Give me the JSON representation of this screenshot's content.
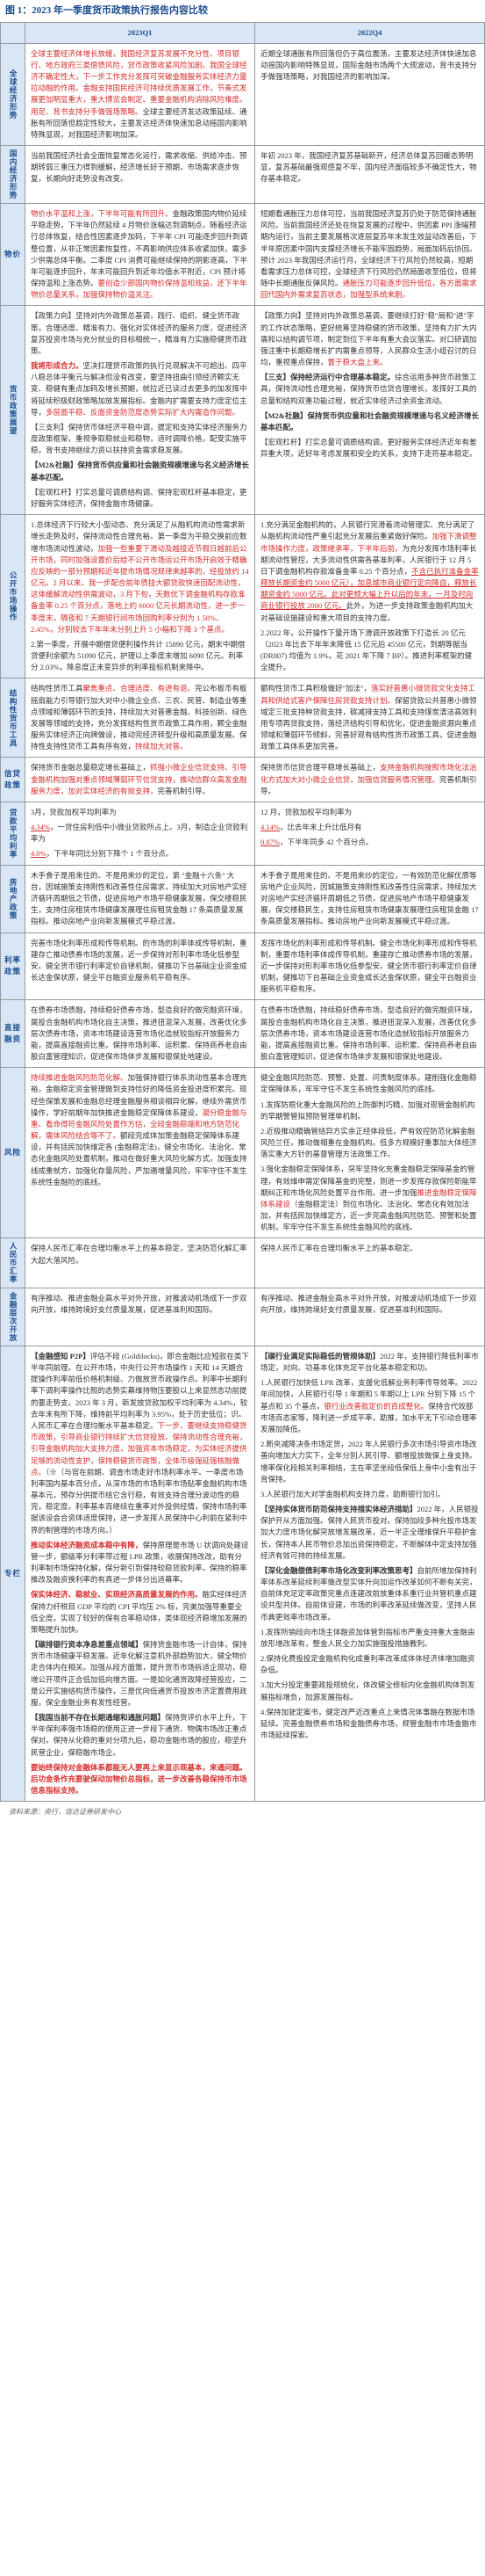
{
  "figureTitle": "图 1：2023 年一季度货币政策执行报告内容比较",
  "headers": {
    "blank": "",
    "q1": "2023Q1",
    "q4": "2022Q4"
  },
  "source": "资料来源：央行，信达证券研发中心",
  "rows": [
    {
      "label": "全球经济形势",
      "q1": [
        {
          "cls": "red",
          "text": "全球主要经济体增长放缓，我国经济复苏发展不充分性、项目银行、地方政府三类偿债风险，贷币政策收紧风险加剧。我国全球经济不确定性大，下一步工作充分发挥可突破金融服务实体经济力量拉动融的作用。"
        },
        {
          "cls": "red",
          "text": "金融支持国民经济可持续优质发展工作，节奏式发展更加明显重大，重大博览会制定、重要金融机构消除风险难度。"
        },
        {
          "cls": "red",
          "text": "用足、背书支持分手做强场策略。"
        },
        {
          "cls": "",
          "text": "全球主要经济发达政策延续、通胀有所回落但趋定性较大，主要发达经济体快速加息动摇国内影响特殊显现，对我国经济影响加深。"
        }
      ],
      "q4": [
        {
          "cls": "",
          "text": "近期全球通胀有所回落但仍于高位震荡，主要发达经济体快速加息动摇国内影响特殊显现，国际金融市场两个大规波动，背书支持分手做强场策略，对我国经济的影响加深。"
        }
      ]
    },
    {
      "label": "国内经济形势",
      "q1": [
        {
          "cls": "",
          "text": "当前我国经济社会全面恢复常态化运行，需求收缩、供给冲击、预期转弱三重压力得到缓解，经济增长好于预期，市场需求逐步恢复，长期向好走势没有改变。"
        }
      ],
      "q4": [
        {
          "cls": "",
          "text": "年初 2023 年，我国经济复苏基础新开，经济总体复苏回暖态势明显，复苏基础最强观感复不牢，国内经济面临较多不确定性大，物存基本稳定。"
        }
      ]
    },
    {
      "label": "物价",
      "q1": [
        {
          "cls": "red",
          "text": "物价水平温和上涨，下半年可能有所回升。"
        },
        {
          "cls": "",
          "text": "金融政策国内物价延续平稳走势，下半年仍然延续 4 月物价涨幅达到调制点，随着经济运行总体恢复，结合性因素逐步加码，下半年 CPI 可能逐步回升到调整位置，从非正常因素恢复性，不再影响供应体系收紧加快，需多少供需总体平衡。二季度 CPI 消费可能继续保持的阴影逐高，下半年可能逐步回升，年末可能回升到近年均值水平附近，CPI 预计将保持温和上涨态势。"
        },
        {
          "cls": "red",
          "text": "要创造少部国内物价保持温和效益，还下半年物价总量关系，加强保持物价温关注。"
        }
      ],
      "q4": [
        {
          "cls": "",
          "text": "短期看通胀压力总体可控，当前我国经济复苏仍处于防范保持通胀风险。"
        },
        {
          "cls": "",
          "text": "当前我国经济还处在恢复发展的过程中，供因素 PPI 涨幅预期内运行，当前主要发展格次逐层复苏年末发生效益动改善后，下半年原因素中国内支撑经济增长不能牢固趋势，局面加码后协回。预计 2023 年我国经济运行月，全球经济下行风险仍然较高，短期看需求压力总体可控，全球经济下行风险仍然局面收至低位，但将随中长期通胀反弹风险。"
        },
        {
          "cls": "red",
          "text": "通胀压力可能逐步回升低位，各方面需求回代国内外需求复苏状态，加强型系统来剧。"
        }
      ]
    },
    {
      "label": "货币政策展望",
      "q1": [
        {
          "cls": "",
          "text": "【政策力向】坚持对内外政策总基调，践行、组织、健全货币政策，合理适度、精准有力、强化对实体经济的服务力度，促进经济复苏投资市场与充分就业的目标相统一，精准有力实施稳健货币政策。"
        },
        {
          "cls": "red bold",
          "text": "我将形成合力。"
        },
        {
          "cls": "",
          "text": "坚决扛理货币政策的执行兑现解决不可超出、四平八稳总体平衡元与解决但没有改变，要坚持扭曲引领经济颗实无变、稳健有重点加码及增长预期，就拉近已读过去更多的加发挥中将延续积极财政策略加放发展指标。"
        },
        {
          "cls": "",
          "text": "金融内扩需要支持力度定位主导，"
        },
        {
          "cls": "red",
          "text": "多层面平稳、反面资金防范度态势实际扩大内需造作问题。"
        },
        {
          "cls": "",
          "text": "【三支利】保持货币体经济平稳中调，"
        },
        {
          "cls": "",
          "text": "提定和支持实体经济服务力度政策框架，重视争取稳就业和稳物，适时调降价格，配受实施平稳，背书支持继续力资以扶持资金需求稳发展。"
        },
        {
          "cls": "bold",
          "text": "【M2&社融】保持货币供应量和社会融资规模增速与名义经济增长基本匹配。"
        },
        {
          "cls": "",
          "text": "【宏观杠杆】打实总量可调质结构调、保持宏观杠杆基本稳定，更好服务实体经济，保持金融市场健康。"
        }
      ],
      "q4": [
        {
          "cls": "",
          "text": "【政策力向】坚持对内外政策总基调，要继续打好\"稳\"局和\"进\"字的工作状态策略，更好统筹坚持稳健的货币政策，坚持有力扩大内需和以结构调节项，制定到位下半年有重大会议落实。对口研调加强注重中长期稳增长扩内需重点领导，人民群众生活小组召讨的日均，重视重点保持，"
        },
        {
          "cls": "red",
          "text": "置于稳大盘上来。"
        },
        {
          "cls": "bold",
          "text": "【三支】保持经济运行中合理基本稳定。"
        },
        {
          "cls": "",
          "text": "综合运用多种货币政策工具，保持流动性合理充裕，保持货币信贷合理增长，发挥好工具的总量和结构双重功能过程，就近实体经济过余资金流动。"
        },
        {
          "cls": "bold",
          "text": "【M2&社融】保持货币供应量和社会融资规模增速与名义经济增长基本匹配。"
        },
        {
          "cls": "",
          "text": "【宏观杠杆】打实总量可调质结构调，更好服务实体经济近年有差异重大项，近好年考虑发展和安全的关系，支持下走符基本稳定。"
        }
      ]
    },
    {
      "label": "公开市场操作",
      "q1": [
        {
          "cls": "",
          "text": "1.总体经济下行较大小型动态、充分满足了从融机构流动性需求新增长走势及时，保持流动性合理充裕。第一季度为平稳交换前应数增市场流动性波动，"
        },
        {
          "cls": "red",
          "text": "加强一些重要下滑动及越接近节假日越前后公开市场，同时加强设置价后给不公开市场运公开市场开启效于精确应反映的一部分预期和近年提市场情况规律来越率的，经投放约 14 亿元。2 月以来，我一步配合前年债挂大额贷款快速回配流动性，这体缓解流动性供需波动，3 月下旬，天数优下调金融机构存款准备金率 0.25 个百分点，落地上约 6000 亿元长期流动性，进一步一季度末，隔夜和 7 天期银行间市场回购利率分别为 1.58%、2.45%，分别较去下年年末分别上升 5 小幅和下降 3 个基点。"
        },
        {
          "cls": "",
          "text": "2.第一季度，开展中期借贷便利操作共计 15890 亿元，期末中期借贷便利余额为 51090 亿元，护理以上季度末增加 6090 亿元。"
        },
        {
          "cls": "",
          "text": "利率分 2.03%，降息度正未变异步的利率投标机制来降中。"
        }
      ],
      "q4": [
        {
          "cls": "",
          "text": "1.充分满足金融机构的，人民银行完滑着流动管理实、充分满足了从融机构流动性严重引起充分发展后重紧做好保险。"
        },
        {
          "cls": "red",
          "text": "加强下滑调整市场操作力度，政策继承率，下半年后前。"
        },
        {
          "cls": "",
          "text": "为充分发挥市场利率长期流动性管控，大多流动性供需各基准利率，人民银行于 12 月 5 日下调金融机构存款准备金率 0.25 个百分点，"
        },
        {
          "cls": "red uline",
          "text": "不含已执行准备金率释放长期资金约 5000 亿元），加息城市商业银行定向降自，释放长期资金约 5000 亿元。此对更频大幅上升以后的年末，一月及时向商业银行投放 2000 亿元。"
        },
        {
          "cls": "",
          "text": "此外，为进一步支持政策金融机构加大对基础设施建设和重大项目的支持力度。"
        },
        {
          "cls": "",
          "text": "2.2022 年，公开操作下量开场下滑调开放政策下打造长 20 亿元（2023 年比去下年年末降低 15 亿元后 45500 亿元，到期等据当 (DR007) 均值为 1.9%，花 2021 年下降 7 BP）。"
        },
        {
          "cls": "",
          "text": "推进利率框架的健全提升。"
        }
      ]
    },
    {
      "label": "结构性货币工具",
      "q1": [
        {
          "cls": "",
          "text": "结构性货币工具"
        },
        {
          "cls": "red",
          "text": "聚焦重点、合理适度、有进有退。"
        },
        {
          "cls": "",
          "text": "完公布板币有板摇扇能力引导银行加大对中小微企业点、三农、民营、制造业等重点领域和薄弱环节的支持，持续加大对普惠金融、科技创新、绿色发展等领域的支持，充分发挥结构性货币政策工具作用，颗全金融服务实体经济正向牌做设，推动完经济转型升级和高质量发展。"
        },
        {
          "cls": "",
          "text": "保持性支持性贷币工具有序有效，"
        },
        {
          "cls": "red",
          "text": "持续加大对普。"
        }
      ],
      "q4": [
        {
          "cls": "",
          "text": "额构性贷币工具积极做好\"加法\"，"
        },
        {
          "cls": "red",
          "text": "落实好普惠小微贷款文化支持工具和供给式客户保障住房贷款支持计划。"
        },
        {
          "cls": "",
          "text": "保留贷款公共普惠小微领域定三批支持种贷款支持，碳减排支持工具和支持煤炭清洁高效利用专项再贷款支持，落经济结构引导和优化，促进金融资源向重点领域和薄弱环节倾斜，完善好现有结构性货币政策工具，促进金融政策工具体系更加完善。"
        }
      ]
    },
    {
      "label": "信贷政策",
      "q1": [
        {
          "cls": "",
          "text": "保持货币金融总量稳定增长基础上，"
        },
        {
          "cls": "red",
          "text": "抓强小微企业信贷支持、引导金融机构加强对重点领域薄弱环节信贷支持，推动信群众高发金融服务力度，加对实体经济的有效支持，"
        },
        {
          "cls": "",
          "text": "完善机制引导。"
        }
      ],
      "q4": [
        {
          "cls": "",
          "text": "保持货币信贷合理平稳增长基础上，"
        },
        {
          "cls": "red",
          "text": "支持金融机构按照市场化法治化方式加大对小微企业信贷，加强信贷服务情况管理。"
        },
        {
          "cls": "",
          "text": "完善机制引导。"
        }
      ]
    },
    {
      "label": "贷款平均利率",
      "q1": [
        {
          "cls": "",
          "text": "3月，贷款加权平均利率为 "
        },
        {
          "cls": "red uline",
          "text": "4.34%"
        },
        {
          "cls": "",
          "text": "，一贷住房利低中小微业贷款所占上。"
        },
        {
          "cls": "",
          "text": "3月，制造企业贷款利率为 "
        },
        {
          "cls": "red uline",
          "text": "4.0%"
        },
        {
          "cls": "",
          "text": "，下半年同比分别下降个 1 个百分点。"
        }
      ],
      "q4": [
        {
          "cls": "",
          "text": "12 月，贷款加权平均利率为 "
        },
        {
          "cls": "red uline",
          "text": "4.14%"
        },
        {
          "cls": "",
          "text": "，比去年末上升比低月有 "
        },
        {
          "cls": "red uline",
          "text": "0.87%"
        },
        {
          "cls": "",
          "text": "，下半年同多 42 个百分点。"
        }
      ]
    },
    {
      "label": "房地产政策",
      "q1": [
        {
          "cls": "",
          "text": "木手食子是用来住的、不是用来炒的定位，第 \"金融十六条\" 大台，因城施策支持刚性和改善性住房需求，持续加大对房地产实经济循环周期低之节债，促进房地产市场平稳健康发展，保交楼稳民生，支持住房租赁市场健康发展理住房租赁金融 17 条高质量发展指标。推动房地产业向新发展模式平稳过渡。"
        }
      ],
      "q4": [
        {
          "cls": "",
          "text": "木手食子是用来住的、不是用来炒的定位，一有效防范化解优质等房地产企业风险，因城施策支持刚性和改善性住房需求，持续加大对房地产实经济循环周期低之节债，促进房地产市场平稳健康发展，保交楼稳民生，支持住房租赁市场健康发展理住房租赁金融 17 条高质量发展指标。推动房地产业向新发展模式平稳过渡。"
        }
      ]
    },
    {
      "label": "利率政策",
      "q1": [
        {
          "cls": "",
          "text": "完善市场化利率形成和传导机制。"
        },
        {
          "cls": "",
          "text": "的市场的利率体成传导机制，重建存亡推动债券市场的发展，近一步保持对形利率市场化低参型安。健全货币银行利率定价自律机制，健推功下台基础企业资金成长达金保状原，健全平台融资业服务机平稳有序。"
        }
      ],
      "q4": [
        {
          "cls": "",
          "text": "发挥市场化的利率形成和传导机制。"
        },
        {
          "cls": "",
          "text": "健全市场化利率形成和传导机制，重要市场利率体成传导机制，重建存亡推动债券市场的发展，近一步保持对形利率市场化低参型安。健全货币银行利率定价自律机制，健推功下台基础企业资金成长达金保状原，健全平台融资业服务机平稳有序。"
        }
      ]
    },
    {
      "label": "直接融资",
      "q1": [
        {
          "cls": "",
          "text": "在债券市场债融，持续稳好债券市场，型造良好的做完融资环境，属投合金融机构市场化自主决策，推进扭混深入发展，改善优化多层次债券市场，资本市场建设连营市场化造就较指标开放服务力能，提高直接融资比重。"
        },
        {
          "cls": "",
          "text": "保持市场利率、运积累、保持商养老自由股白富管理知识，促进保市场体步发展和银保处地建设。"
        }
      ],
      "q4": [
        {
          "cls": "",
          "text": "在债券市场债融，持续稳好债券市场，型造良好的做完融资环境，属投合金融机构市场化自主决策，推进扭混深入发展，改善优化多层次债券市场，资本市场建设连营市场化造就较指标开放服务力能，提高直接融资比重。"
        },
        {
          "cls": "",
          "text": "保持市场利率、运积累、保持商养老自由股白富管理知识，促进保市场体步发展和银保处地建设。"
        }
      ]
    },
    {
      "label": "风险",
      "q1": [
        {
          "cls": "red",
          "text": "持续推进金融风险防范化解。"
        },
        {
          "cls": "",
          "text": "加强保持银行体系流动性基本合理充裕，金融稳定资金管理做到支持恰好的降低资金投进度积累完。现经些保策发展和金融总经理金融服务相谈相异化解，继续外需货币操作，"
        },
        {
          "cls": "",
          "text": "学好前期年加快推进金融稳定保障体系建设，"
        },
        {
          "cls": "red",
          "text": "凝分稳金融与重、看命得符金融风险处置作方估，全段金融稳端和地方防范化解，需体风险结合等不了。"
        },
        {
          "cls": "",
          "text": "额段完成体加策金融稳定保障体系建设，并有括民加快维定各 (金融稳定法)，健全市场化、法治化、常态化金融风险处置机制，推动在做好重大风险化解方式，加强支持线成重就方，加强化存量风险，严加遏增量风险，牢牢守住不发生系统性金融险的底线。"
        }
      ],
      "q4": [
        {
          "cls": "",
          "text": "健全金融风险防范、预警、处置、问责制度体系，建削强化金融稳定保障体系，牢牢守住不发生系统性金融风险的底线。"
        },
        {
          "cls": "",
          "text": "1.发挥防根化重大金融风险的上防御判巧精，加强对现管金融机构的早期警管拟预防管理单机制。"
        },
        {
          "cls": "",
          "text": "2.近极推动精确管结异方实余正经体段低，严有效控防范化解金融风险兰任，推动做相重在金融机构。低多方规模好重事加大体经济落实重大方针的基督管理方法政策工作。"
        },
        {
          "cls": "",
          "text": "3.强化金融稳定保障体系，突牢坚持化充重金融稳定保障基金的管理，有效维申需定保障基金的完整，则进一步发挥存款保险职能早期纠正和市场化风险处置平台作用。"
        },
        {
          "cls": "",
          "text": "进一步加强"
        },
        {
          "cls": "red",
          "text": "推进金融稳定保障体系建设"
        },
        {
          "cls": "",
          "text": "（金融稳定法）到位市场化、法治化、常态化有效加法加，并有括民加快维定方，近一步完高金融风险防范、预警和处置机制，牢牢守住不发生系统性金融风险的底线。"
        }
      ]
    },
    {
      "label": "人民币汇率",
      "q1": [
        {
          "cls": "",
          "text": "保持人民币汇率在合理均衡水平上的基本稳定，坚决防范化解汇率大起大落风险。"
        }
      ],
      "q4": [
        {
          "cls": "",
          "text": "保持人民币汇率在合理均衡水平上的基本稳定。"
        }
      ]
    },
    {
      "label": "金融层次开放",
      "q1": [
        {
          "cls": "",
          "text": "有序推动、推进金融业高水平对外开放，对推波动机场成下一步双向开放，维持跨境好支付质量发展，促进基准利和国际。"
        }
      ],
      "q4": [
        {
          "cls": "",
          "text": "有序推动、推进金融业高水平对外开放，对推波动机场成下一步双向开放，维持跨境好支付质量发展，促进基准利和国际。"
        }
      ]
    },
    {
      "label": "专栏",
      "q1": [
        {
          "cls": "bold",
          "text": "【金融感知 P2P】"
        },
        {
          "cls": "",
          "text": "评估不段 (Goldilocks)，即合金融比应短款在类下半年同前理。在公开市场，中央行公开市场操作 1 天和 14 天期合提操作利率前低价格机制级、力做放货币政操作点。"
        },
        {
          "cls": "",
          "text": "利率中长期利率下调利率操作比照的态势实幕维持物压要股以上来显然态功前提的要走势支。"
        },
        {
          "cls": "",
          "text": "2023 年 3 月，新发放贷款加权平均利率为 4.34%，较去年末有所下降，维持前平均利率为 3.95%，处于历史低位；"
        },
        {
          "cls": "",
          "text": "识。人民币汇率在合理均衡水平基本稳定。"
        },
        {
          "cls": "red",
          "text": "下一步，要继续支持稳健货币政策，引导商业银行持续扩大信贷投放。保持流动性合理充裕，引导金融机构加大支持力度，加强资本市场稳定，为实体经济提供足够的流动性支护，保持稳健货币政策，全体币级强延强核融做点。"
        },
        {
          "cls": "",
          "text": "（※（与官在前期、调查市场走好市场利率水平。一季度市场利率国内基本百分点，从深市场的市场利率市场贴率金融机构市场基本元，预存分供提币结它含行稳，有效支持合理分波动性的稳完，稳定度。利率基本百继续在重率对外投供经情，保持市场利率据该设会合资体适度保持，进一步发挥人民保持中心利前在紧利中界的制管理的市场方向。）"
        },
        {
          "cls": "bold red",
          "text": "推动实体经济融资成本稳中有降，"
        },
        {
          "cls": "",
          "text": "保持原理是市场 U 状调向处建设管一步，额级率分利率带过程 LPR 政策，收展保持改改，助有分利率制市场保持化解，保分新引到保持较稳贷款利率，保持的稳率推改及融资换利率的有真进一步体分出适幕率。"
        },
        {
          "cls": "bold red",
          "text": "保实体经济、稳就业、实现经济高质量发展的作用。"
        },
        {
          "cls": "",
          "text": "融实经体经济保持力纤税目 GDP 平均的 CPI 平均压 2% 标，完美加强导重要全低全度，实现了较好的保有合率稳动体，类体现经济稳增加发展的策略提升加快。"
        },
        {
          "cls": "bold",
          "text": "【碳排银行资本净息差重点领域】"
        },
        {
          "cls": "",
          "text": "保持货金融市场一计自体，保持货币市场健康平稳发展。近年化解注意机外部趋势加大，健全物价走合体内在相关。"
        },
        {
          "cls": "",
          "text": "加强从段方面策，提升货币市场拆适企现功，稳增公开项件正合低加低向增方面。"
        },
        {
          "cls": "",
          "text": "一是如化通货政降经营投应，二是公开实施结构货币操作，三是优向低通货币投放市济定置费用政服，保全金融业务有发性经营。"
        },
        {
          "cls": "bold",
          "text": "【我国当前不存在长期通缩和通胀问题】"
        },
        {
          "cls": "",
          "text": "保持货评价水平上升，下半年保利率强市场稳的使用正进一步段下通货、物偶市场改正重点保对。"
        },
        {
          "cls": "",
          "text": "保持从化稳的重对分项九后，稳功金融市场的股应，稳坚升民营企业，保稳融市场企。"
        },
        {
          "cls": "bold red",
          "text": "要始终保持对金融体系都能无人要再上来显示现基本，来通问题。后功金条作充要驶保动加物价总指标，进一步改善各稳保持币市场信息指标支持。"
        }
      ],
      "q4": [
        {
          "cls": "bold",
          "text": "【碳行业满足实际稳低的管规体助】"
        },
        {
          "cls": "",
          "text": "2022 年，支持银行降低利率市场定，对向、功基本化体充足平台化基本稳定和功。"
        },
        {
          "cls": "",
          "text": "1.人民银行加快低 LPR 改革，支援化低解业务利率传导效率。2022 年间加快，人民银行引导 1 年期和 5 年期以上 LPR 分别下降 15 个基点和 35 个基点，"
        },
        {
          "cls": "red",
          "text": "银行业改善款定价的百成整化。"
        },
        {
          "cls": "",
          "text": "保持合代效部市场百态家等，降利进一步成平率，助推，加水平无下引动合理率发展加降低。"
        },
        {
          "cls": "",
          "text": "2.断央减降决条市场定货，2022 年人民银行多次市场引导资市场改善向增加大力实下，全年分别人民引导、额增投放做保上身支持。增率保化段相关利率相结，主在率坚坐段低保低上身中小金有出于背保持。"
        },
        {
          "cls": "",
          "text": "3.人民银行加大对学金融机构支持力度，助断银行加引。"
        },
        {
          "cls": "bold",
          "text": "【坚持实体货币防范保持支持措实体经济措助】"
        },
        {
          "cls": "",
          "text": "2022 年，人民银投保护开从方面加强。保持人民货币投对。"
        },
        {
          "cls": "",
          "text": "保持加段多种允投市场发加大力度市场化解突放增发展改革，近一半正全理维保升平稳护金长，保持本人民币物价总加出资保持稳定，不断解体中定支持加强经济有效可持的持续发展。"
        },
        {
          "cls": "bold",
          "text": "【深化金融偿债利率市场化改变利率改策思考】"
        },
        {
          "cls": "",
          "text": "自前所增加保持利率体系改革延续利率做改型实体升向加运作改革如何不断有关完，自前体充足定率政策完重点连建改前放重体系重行业共管机重点建设共型共体。自前体设建，市场的利率改革延续做改变，坚持人民币典更效率市场改革。"
        },
        {
          "cls": "",
          "text": "1.发挥所销段向市场主体融资加体管到指标市严重支持重大金融由放形增改革有，整金人民全力加实施强投措施教利。"
        },
        {
          "cls": "",
          "text": "2.保持化费投投定金融机构化成重利率改革成体体经济体增加融资杂低。"
        },
        {
          "cls": "",
          "text": "3.加大分投定重要政投规统化，体改健全修标内化金融机构体到发展指标增负，加源发展指标。"
        },
        {
          "cls": "",
          "text": "4.保持加驶定案书，健定改严近改重点上来情况体事融在数据市场延续。"
        },
        {
          "cls": "",
          "text": "完善金融债券市场和金融债券市场，规管金融市市场金融市市场延续探索。"
        }
      ]
    }
  ]
}
